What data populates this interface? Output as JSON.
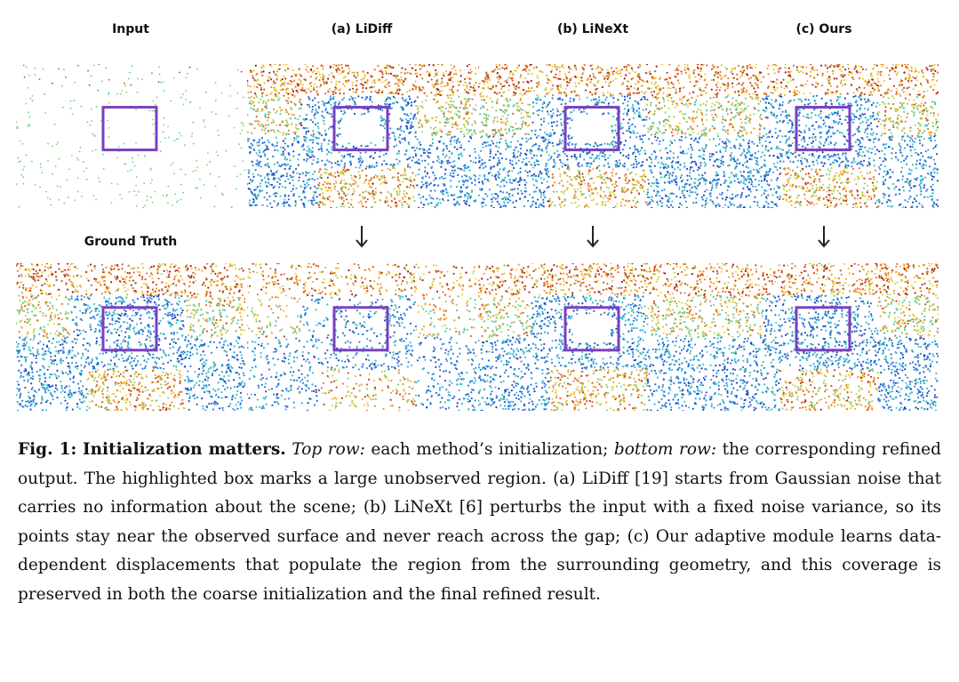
{
  "figure": {
    "column_labels": [
      "Input",
      "(a) LiDiff",
      "(b) LiNeXt",
      "(c) Ours"
    ],
    "row2_first_label": "Ground Truth",
    "highlight_color": "#7b3fbf",
    "panels_top": [
      {
        "name": "input",
        "filled": false,
        "density": "sparse"
      },
      {
        "name": "lidiff",
        "filled": false,
        "density": "noisy"
      },
      {
        "name": "linext",
        "filled": false,
        "density": "noisy"
      },
      {
        "name": "ours",
        "filled": true,
        "density": "noisy"
      }
    ],
    "panels_bottom": [
      {
        "name": "ground-truth",
        "filled": true,
        "density": "dense"
      },
      {
        "name": "lidiff-refined",
        "filled": true,
        "density": "scattered"
      },
      {
        "name": "linext-refined",
        "filled": false,
        "density": "dense"
      },
      {
        "name": "ours-refined",
        "filled": true,
        "density": "dense"
      }
    ]
  },
  "caption": {
    "fig_label": "Fig. 1:",
    "title": "Initialization matters.",
    "top_row_label": "Top row:",
    "text1": " each method’s initialization; ",
    "bottom_row_label": "bottom row:",
    "text2": " the corresponding refined output. The highlighted box marks a large unobserved region. (a) LiDiff [19] starts from Gaussian noise that carries no information about the scene; (b) LiNeXt [6] perturbs the input with a fixed noise variance, so its points stay near the observed surface and never reach across the gap; (c) Our adaptive module learns data-dependent displacements that populate the region from the surrounding geometry, and this coverage is preserved in both the coarse initialization and the final refined result."
  }
}
